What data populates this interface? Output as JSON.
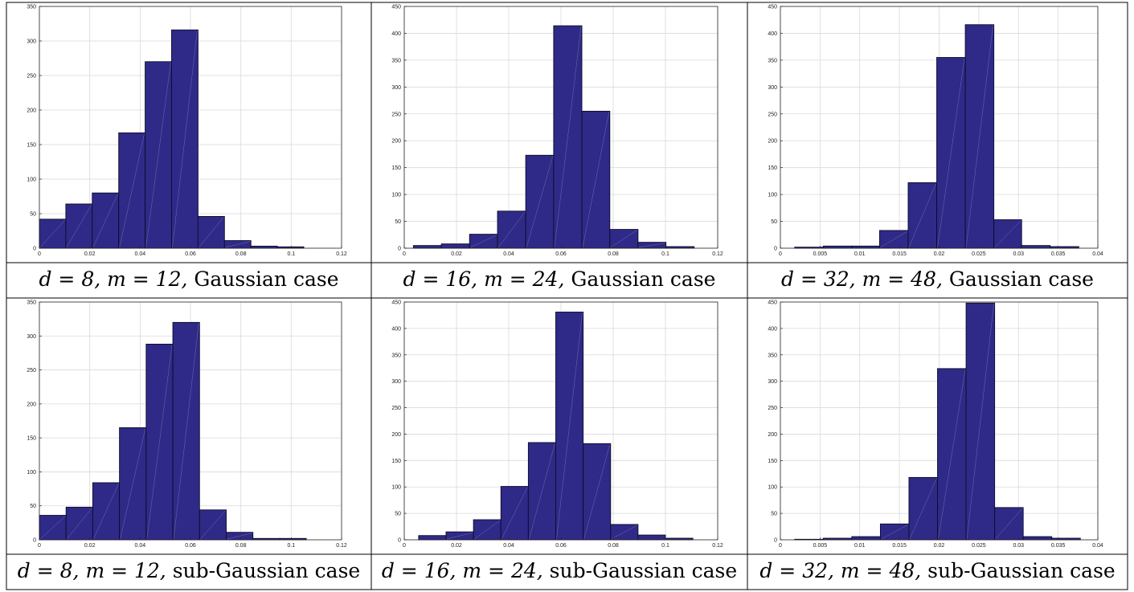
{
  "colors": {
    "bar_fill": "#2f2a87",
    "bar_edge": "#0b0b2a",
    "grid": "#d9d9d9",
    "border": "#000000"
  },
  "panels": [
    {
      "caption": {
        "math": "d = 8, m = 12,",
        "text": "Gaussian case"
      },
      "chart_data": {
        "type": "bar",
        "xlim": [
          0,
          0.12
        ],
        "ylim": [
          0,
          350
        ],
        "xticks": [
          "0",
          "0.02",
          "0.04",
          "0.06",
          "0.08",
          "0.1",
          "0.12"
        ],
        "yticks": [
          "0",
          "50",
          "100",
          "150",
          "200",
          "250",
          "300",
          "350"
        ],
        "bin_edges": [
          0,
          0.0105,
          0.021,
          0.0315,
          0.042,
          0.0525,
          0.063,
          0.0735,
          0.084,
          0.0945,
          0.105
        ],
        "values": [
          42,
          64,
          80,
          167,
          270,
          316,
          46,
          11,
          3,
          2
        ],
        "grid": true
      }
    },
    {
      "caption": {
        "math": "d = 16, m = 24,",
        "text": "Gaussian case"
      },
      "chart_data": {
        "type": "bar",
        "xlim": [
          0,
          0.12
        ],
        "ylim": [
          0,
          450
        ],
        "xticks": [
          "0",
          "0.02",
          "0.04",
          "0.06",
          "0.08",
          "0.1",
          "0.12"
        ],
        "yticks": [
          "0",
          "50",
          "100",
          "150",
          "200",
          "250",
          "300",
          "350",
          "400",
          "450"
        ],
        "bin_edges": [
          0.0035,
          0.0142,
          0.025,
          0.0357,
          0.0465,
          0.0572,
          0.068,
          0.0787,
          0.0895,
          0.1002,
          0.111
        ],
        "values": [
          5,
          8,
          26,
          69,
          173,
          414,
          255,
          35,
          11,
          3
        ],
        "grid": true
      }
    },
    {
      "caption": {
        "math": "d = 32, m = 48,",
        "text": "Gaussian case"
      },
      "chart_data": {
        "type": "bar",
        "xlim": [
          0,
          0.04
        ],
        "ylim": [
          0,
          450
        ],
        "xticks": [
          "0",
          "0.005",
          "0.01",
          "0.015",
          "0.02",
          "0.025",
          "0.03",
          "0.035",
          "0.04"
        ],
        "yticks": [
          "0",
          "50",
          "100",
          "150",
          "200",
          "250",
          "300",
          "350",
          "400",
          "450"
        ],
        "bin_edges": [
          0.0018,
          0.0054,
          0.009,
          0.0125,
          0.0161,
          0.0197,
          0.0233,
          0.0269,
          0.0304,
          0.034,
          0.0376
        ],
        "values": [
          2,
          4,
          4,
          33,
          122,
          355,
          416,
          53,
          5,
          3
        ],
        "grid": true
      }
    },
    {
      "caption": {
        "math": "d = 8, m = 12,",
        "text": "sub-Gaussian case"
      },
      "chart_data": {
        "type": "bar",
        "xlim": [
          0,
          0.12
        ],
        "ylim": [
          0,
          350
        ],
        "xticks": [
          "0",
          "0.02",
          "0.04",
          "0.06",
          "0.08",
          "0.1",
          "0.12"
        ],
        "yticks": [
          "0",
          "50",
          "100",
          "150",
          "200",
          "250",
          "300",
          "350"
        ],
        "bin_edges": [
          0,
          0.0106,
          0.0212,
          0.0318,
          0.0424,
          0.053,
          0.0636,
          0.0742,
          0.0848,
          0.0954,
          0.106
        ],
        "values": [
          36,
          48,
          84,
          165,
          288,
          320,
          44,
          11,
          2,
          2
        ],
        "grid": true
      }
    },
    {
      "caption": {
        "math": "d = 16, m = 24,",
        "text": "sub-Gaussian case"
      },
      "chart_data": {
        "type": "bar",
        "xlim": [
          0,
          0.12
        ],
        "ylim": [
          0,
          450
        ],
        "xticks": [
          "0",
          "0.02",
          "0.04",
          "0.06",
          "0.08",
          "0.1",
          "0.12"
        ],
        "yticks": [
          "0",
          "50",
          "100",
          "150",
          "200",
          "250",
          "300",
          "350",
          "400",
          "450"
        ],
        "bin_edges": [
          0.0055,
          0.016,
          0.0265,
          0.037,
          0.0475,
          0.058,
          0.0685,
          0.079,
          0.0895,
          0.1,
          0.1105
        ],
        "values": [
          8,
          15,
          38,
          101,
          184,
          431,
          182,
          29,
          9,
          3
        ],
        "grid": true
      }
    },
    {
      "caption": {
        "math": "d = 32, m = 48,",
        "text": "sub-Gaussian case"
      },
      "chart_data": {
        "type": "bar",
        "xlim": [
          0,
          0.04
        ],
        "ylim": [
          0,
          450
        ],
        "xticks": [
          "0",
          "0.005",
          "0.01",
          "0.015",
          "0.02",
          "0.025",
          "0.03",
          "0.035",
          "0.04"
        ],
        "yticks": [
          "0",
          "50",
          "100",
          "150",
          "200",
          "250",
          "300",
          "350",
          "400",
          "450"
        ],
        "bin_edges": [
          0.0018,
          0.0054,
          0.009,
          0.0126,
          0.0162,
          0.0198,
          0.0234,
          0.027,
          0.0306,
          0.0342,
          0.0378
        ],
        "values": [
          1,
          3,
          6,
          30,
          118,
          324,
          448,
          61,
          6,
          3
        ],
        "grid": true
      }
    }
  ]
}
